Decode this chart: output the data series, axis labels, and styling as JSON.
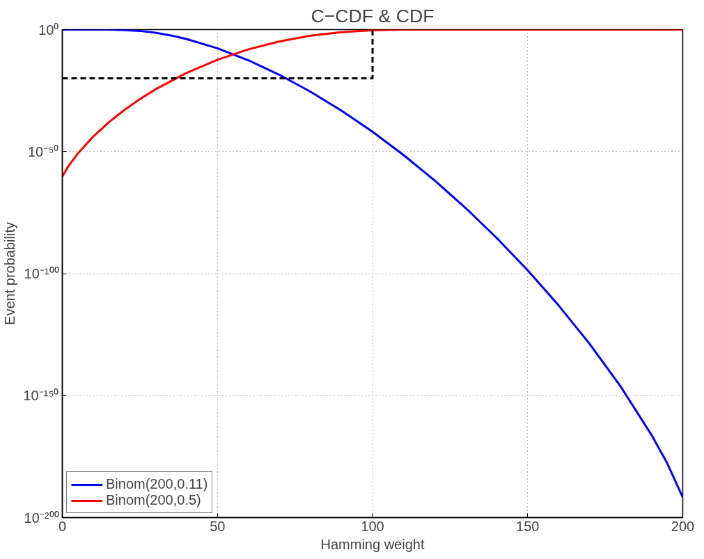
{
  "chart_data": {
    "type": "line",
    "title": "C−CDF & CDF",
    "xlabel": "Hamming weight",
    "ylabel": "Event probability",
    "log": "y",
    "xlim": [
      0,
      200
    ],
    "xticks": [
      0,
      50,
      100,
      150,
      200
    ],
    "ylim": [
      1e-200,
      1
    ],
    "yticks": [
      {
        "value": 1e-200,
        "label": "10⁻²⁰⁰"
      },
      {
        "value": 1e-150,
        "label": "10⁻¹⁵⁰"
      },
      {
        "value": 1e-100,
        "label": "10⁻¹⁰⁰"
      },
      {
        "value": 1e-50,
        "label": "10⁻⁵⁰"
      },
      {
        "value": 1,
        "label": "10⁰"
      }
    ],
    "grid": true,
    "legend": "bottom left",
    "line_style": "solid",
    "series": [
      {
        "name": "Binom(200,0.11)",
        "color": "#0000ff",
        "x": [
          0,
          5,
          10,
          15,
          20,
          25,
          30,
          35,
          40,
          50,
          60,
          70,
          80,
          90,
          100,
          110,
          120,
          130,
          140,
          150,
          160,
          170,
          180,
          190,
          195,
          200
        ],
        "values": [
          1,
          1,
          1,
          0.98,
          0.66,
          0.29,
          0.055,
          0.004,
          0.00014,
          2.2e-08,
          2.4e-13,
          2.8e-19,
          3.5e-26,
          5.8e-34,
          1.3e-42,
          3.7e-52,
          1.5e-62,
          7.6e-74,
          4.3e-86,
          2.3e-99,
          8.3e-114,
          1.4e-129,
          4.6e-147,
          5.2e-167,
          1.7e-178,
          1.9e-192
        ]
      },
      {
        "name": "Binom(200,0.5)",
        "color": "#ff0000",
        "x": [
          0,
          2,
          5,
          10,
          15,
          20,
          25,
          30,
          40,
          50,
          60,
          70,
          80,
          90,
          100,
          110,
          120,
          150,
          200
        ],
        "values": [
          6.2e-61,
          1.3e-56,
          1.6e-51,
          1.5e-44,
          1e-38,
          1.1e-33,
          3.2e-29,
          3.1e-25,
          1.7e-18,
          4.3e-13,
          7.8e-09,
          1.4e-05,
          0.003,
          0.089,
          0.53,
          0.93,
          1,
          1,
          1
        ]
      },
      {
        "color": "#000000",
        "line_style": "dashed",
        "x": [
          0,
          100,
          100
        ],
        "values": [
          1e-20,
          1e-20,
          1
        ]
      }
    ]
  }
}
